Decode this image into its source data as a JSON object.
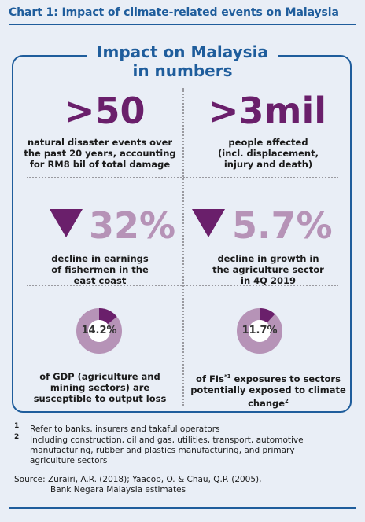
{
  "chart_title": "Chart 1: Impact of climate-related events on Malaysia",
  "panel_title_line1": "Impact on Malaysia",
  "panel_title_line2": "in numbers",
  "stats": {
    "disasters": {
      "value": ">50",
      "line1": "natural disaster events over",
      "line2": "the past 20 years, accounting",
      "line3": "for RM8 bil of total damage"
    },
    "people": {
      "value": ">3mil",
      "line1": "people affected",
      "line2": "(incl. displacement,",
      "line3": "injury and death)"
    },
    "fishermen": {
      "value": "32%",
      "line1": "decline in earnings",
      "line2": "of fishermen in the",
      "line3": "east coast"
    },
    "agriculture": {
      "value": "5.7%",
      "line1": "decline in growth in",
      "line2": "the agriculture sector",
      "line3": "in 4Q 2019"
    },
    "gdp": {
      "value": "14.2%",
      "fraction": 0.142,
      "line1": "of GDP (agriculture and",
      "line2": "mining sectors) are",
      "line3": "susceptible to output loss"
    },
    "fis": {
      "value": "11.7%",
      "fraction": 0.117,
      "line1_a": "of FIs",
      "line1_sup": "*1",
      "line1_b": " exposures to sectors",
      "line2": "potentially exposed to climate",
      "line3": "change",
      "line3_sup": "2"
    }
  },
  "footnotes": {
    "n1_mark": "1",
    "n1": "Refer to banks, insurers and takaful operators",
    "n2_mark": "2",
    "n2_line1": "Including construction, oil and gas, utilities, transport, automotive",
    "n2_line2": "manufacturing, rubber and plastics manufacturing, and primary",
    "n2_line3": "agriculture sectors"
  },
  "source_line1": "Source: Zurairi, A.R. (2018); Yaacob, O. & Chau, Q.P. (2005),",
  "source_line2": "Bank Negara Malaysia estimates",
  "colors": {
    "blue": "#1f5d9c",
    "purple": "#6a1f6b",
    "pink": "#b693b7",
    "background": "#e9eef6"
  }
}
